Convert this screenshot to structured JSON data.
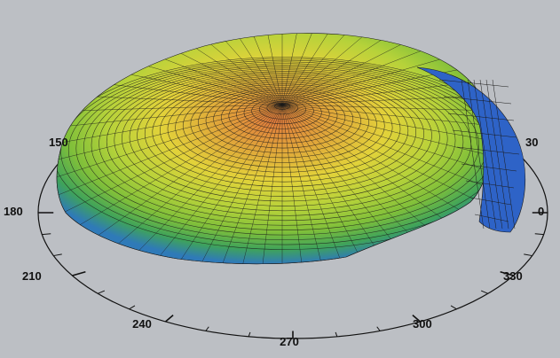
{
  "figure": {
    "type": "3d-surface-polar",
    "background_color": "#bcbfc4",
    "colors": {
      "peak": "#e07b3c",
      "high": "#e2d23a",
      "mid": "#7fbf3a",
      "low": "#2f9a6e",
      "edge": "#2e63c7",
      "mesh": "#1a1a1a"
    }
  },
  "polar_axis": {
    "tick_labels": [
      {
        "angle": 0,
        "text": "0"
      },
      {
        "angle": 30,
        "text": "30"
      },
      {
        "angle": 150,
        "text": "150"
      },
      {
        "angle": 180,
        "text": "180"
      },
      {
        "angle": 210,
        "text": "210"
      },
      {
        "angle": 240,
        "text": "240"
      },
      {
        "angle": 270,
        "text": "270"
      },
      {
        "angle": 300,
        "text": "300"
      },
      {
        "angle": 330,
        "text": "330"
      }
    ],
    "minor_tick_step_deg": 10
  }
}
